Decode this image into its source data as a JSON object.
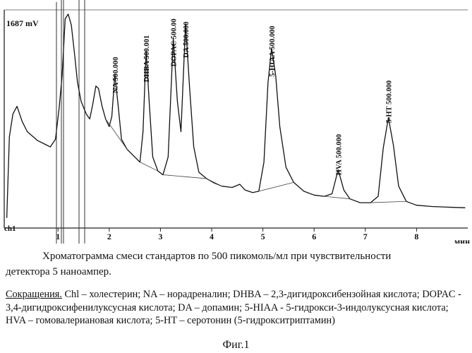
{
  "chart_data": {
    "type": "line",
    "y_max_label": "1687 mV",
    "channel_label": "ch1",
    "x_unit_label": "мин",
    "xlim": [
      -0.05,
      9.0
    ],
    "ylim": [
      0,
      1687
    ],
    "x_ticks": [
      "1",
      "2",
      "3",
      "4",
      "5",
      "6",
      "7",
      "8"
    ],
    "peaks": [
      {
        "label": "NA 500.000",
        "x": 2.11
      },
      {
        "label": "DHBA 500.001",
        "x": 2.72
      },
      {
        "label": "DOPAC 500.00",
        "x": 3.25
      },
      {
        "label": "DA 500.000",
        "x": 3.49
      },
      {
        "label": "5-HIAA 500.000",
        "x": 5.17
      },
      {
        "label": "HVA 500.000",
        "x": 6.47
      },
      {
        "label": "5-HT 500.000",
        "x": 7.45
      }
    ],
    "trace": [
      [
        0.0,
        80
      ],
      [
        0.05,
        720
      ],
      [
        0.12,
        900
      ],
      [
        0.2,
        960
      ],
      [
        0.3,
        840
      ],
      [
        0.4,
        760
      ],
      [
        0.6,
        690
      ],
      [
        0.75,
        660
      ],
      [
        0.85,
        640
      ],
      [
        0.95,
        700
      ],
      [
        1.02,
        940
      ],
      [
        1.08,
        1200
      ],
      [
        1.14,
        1650
      ],
      [
        1.2,
        1687
      ],
      [
        1.26,
        1600
      ],
      [
        1.32,
        1380
      ],
      [
        1.38,
        1150
      ],
      [
        1.45,
        1000
      ],
      [
        1.55,
        900
      ],
      [
        1.62,
        860
      ],
      [
        1.68,
        980
      ],
      [
        1.74,
        1120
      ],
      [
        1.79,
        1100
      ],
      [
        1.86,
        960
      ],
      [
        1.93,
        860
      ],
      [
        2.0,
        800
      ],
      [
        2.05,
        880
      ],
      [
        2.11,
        1210
      ],
      [
        2.17,
        980
      ],
      [
        2.24,
        700
      ],
      [
        2.35,
        620
      ],
      [
        2.5,
        560
      ],
      [
        2.6,
        520
      ],
      [
        2.66,
        760
      ],
      [
        2.72,
        1400
      ],
      [
        2.78,
        1000
      ],
      [
        2.85,
        560
      ],
      [
        2.95,
        450
      ],
      [
        3.05,
        420
      ],
      [
        3.15,
        560
      ],
      [
        3.25,
        1500
      ],
      [
        3.33,
        1000
      ],
      [
        3.4,
        760
      ],
      [
        3.49,
        1610
      ],
      [
        3.57,
        1100
      ],
      [
        3.65,
        640
      ],
      [
        3.75,
        440
      ],
      [
        3.9,
        390
      ],
      [
        4.05,
        355
      ],
      [
        4.2,
        330
      ],
      [
        4.4,
        320
      ],
      [
        4.55,
        345
      ],
      [
        4.65,
        300
      ],
      [
        4.8,
        280
      ],
      [
        4.92,
        290
      ],
      [
        5.02,
        520
      ],
      [
        5.1,
        1150
      ],
      [
        5.17,
        1420
      ],
      [
        5.25,
        1200
      ],
      [
        5.33,
        800
      ],
      [
        5.45,
        480
      ],
      [
        5.6,
        360
      ],
      [
        5.8,
        290
      ],
      [
        6.0,
        260
      ],
      [
        6.2,
        250
      ],
      [
        6.35,
        270
      ],
      [
        6.47,
        460
      ],
      [
        6.58,
        300
      ],
      [
        6.7,
        230
      ],
      [
        6.9,
        200
      ],
      [
        7.1,
        200
      ],
      [
        7.25,
        250
      ],
      [
        7.35,
        630
      ],
      [
        7.45,
        870
      ],
      [
        7.55,
        650
      ],
      [
        7.65,
        330
      ],
      [
        7.8,
        210
      ],
      [
        8.0,
        180
      ],
      [
        8.3,
        170
      ],
      [
        8.6,
        165
      ],
      [
        8.95,
        160
      ]
    ]
  },
  "caption": {
    "line1": "Хроматограмма  смеси стандартов по 500 пикомоль/мл при чувствительности",
    "line2": "детектора 5 наноампер."
  },
  "abbreviations": {
    "title": "Сокращения.",
    "text": " Chl – холестерин; NA – норадреналин; DHBA – 2,3-дигидроксибензойная кислота; DOPAC - 3,4-дигидроксифенилуксусная кислота; DA – допамин; 5-HIAA - 5-гидрокси-3-индолуксусная кислота; HVA – гомовалериановая кислота; 5-HT – серотонин (5-гидрокситриптамин)"
  },
  "figure_label": "Фиг.1"
}
